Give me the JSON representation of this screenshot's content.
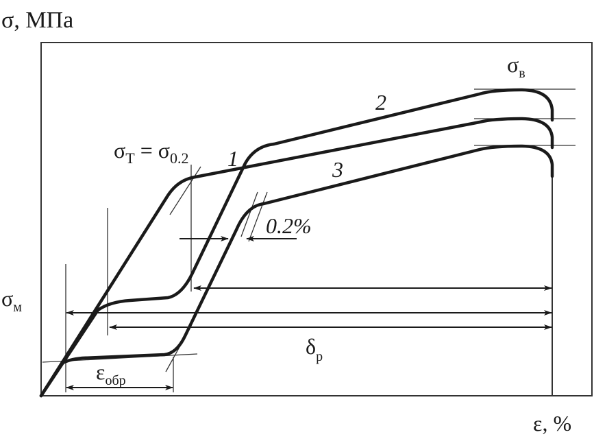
{
  "axes": {
    "y_label": "σ, МПа",
    "x_label": "ε, %"
  },
  "labels": {
    "yield": {
      "main": "σ",
      "sub1": "T",
      "eq": " = σ",
      "sub2": "0.2"
    },
    "ultimate": {
      "main": "σ",
      "sub": "в"
    },
    "plateau": {
      "main": "σ",
      "sub": "м"
    },
    "elongation": {
      "main": "δ",
      "sub": "р"
    },
    "reverse_strain": {
      "main": "ε",
      "sub": "обр"
    },
    "offset": "0.2%"
  },
  "curves": [
    {
      "id": "1",
      "label": "1"
    },
    {
      "id": "2",
      "label": "2"
    },
    {
      "id": "3",
      "label": "3"
    }
  ]
}
